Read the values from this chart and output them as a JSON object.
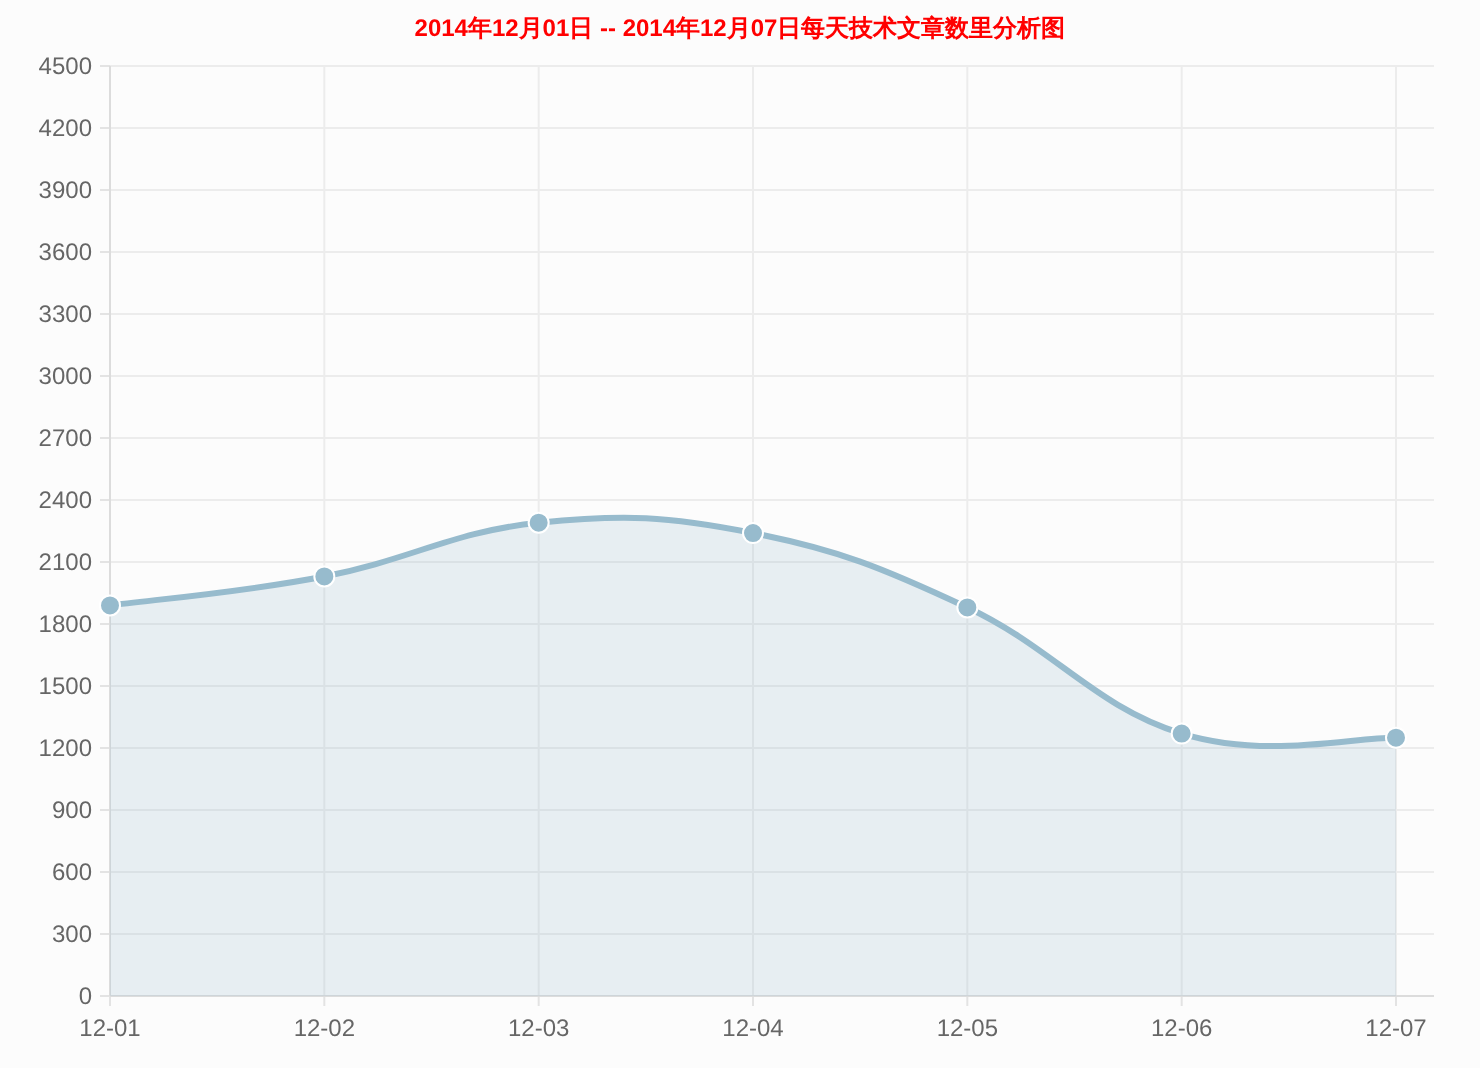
{
  "chart_data": {
    "type": "area",
    "title": "2014年12月01日 -- 2014年12月07日每天技术文章数里分析图",
    "categories": [
      "12-01",
      "12-02",
      "12-03",
      "12-04",
      "12-05",
      "12-06",
      "12-07"
    ],
    "series": [
      {
        "color": "#97bbcd",
        "values": [
          1890,
          2030,
          2290,
          2240,
          1880,
          1270,
          1250
        ]
      }
    ],
    "ylim": [
      0,
      4500
    ],
    "yticks": [
      0,
      300,
      600,
      900,
      1200,
      1500,
      1800,
      2100,
      2400,
      2700,
      3000,
      3300,
      3600,
      3900,
      4200,
      4500
    ],
    "grid": true,
    "marker": "circle"
  }
}
